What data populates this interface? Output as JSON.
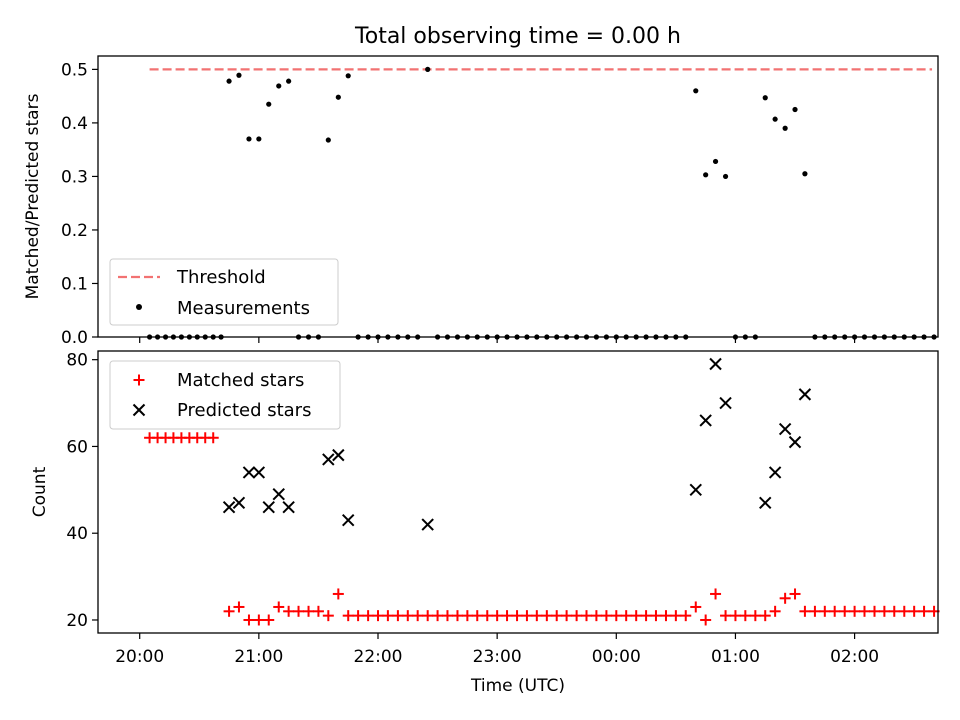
{
  "chart_data": [
    {
      "type": "scatter",
      "title": "Total observing time = 0.00 h",
      "xlabel": "",
      "ylabel": "Matched/Predicted stars",
      "xlim_hours": [
        19.65,
        26.7
      ],
      "ylim": [
        0,
        0.525
      ],
      "yticks": [
        0.0,
        0.1,
        0.2,
        0.3,
        0.4,
        0.5
      ],
      "ytick_labels": [
        "0.0",
        "0.1",
        "0.2",
        "0.3",
        "0.4",
        "0.5"
      ],
      "legend_position": "lower left",
      "threshold": {
        "name": "Threshold",
        "value": 0.5,
        "x_range": [
          20.083,
          26.65
        ],
        "color": "#f27272"
      },
      "series": [
        {
          "name": "Measurements",
          "color": "#000000",
          "marker": "dot",
          "points": [
            [
              20.083,
              0
            ],
            [
              20.15,
              0
            ],
            [
              20.217,
              0
            ],
            [
              20.283,
              0
            ],
            [
              20.35,
              0
            ],
            [
              20.417,
              0
            ],
            [
              20.483,
              0
            ],
            [
              20.55,
              0
            ],
            [
              20.617,
              0
            ],
            [
              20.683,
              0
            ],
            [
              20.75,
              0.478
            ],
            [
              20.833,
              0.489
            ],
            [
              20.917,
              0.37
            ],
            [
              21.0,
              0.37
            ],
            [
              21.083,
              0.435
            ],
            [
              21.167,
              0.469
            ],
            [
              21.25,
              0.478
            ],
            [
              21.333,
              0
            ],
            [
              21.417,
              0
            ],
            [
              21.5,
              0
            ],
            [
              21.583,
              0.368
            ],
            [
              21.667,
              0.448
            ],
            [
              21.75,
              0.488
            ],
            [
              21.833,
              0
            ],
            [
              21.917,
              0
            ],
            [
              22.0,
              0
            ],
            [
              22.083,
              0
            ],
            [
              22.167,
              0
            ],
            [
              22.25,
              0
            ],
            [
              22.333,
              0
            ],
            [
              22.417,
              0.5
            ],
            [
              22.5,
              0
            ],
            [
              22.583,
              0
            ],
            [
              22.667,
              0
            ],
            [
              22.75,
              0
            ],
            [
              22.833,
              0
            ],
            [
              22.917,
              0
            ],
            [
              23.0,
              0
            ],
            [
              23.083,
              0
            ],
            [
              23.167,
              0
            ],
            [
              23.25,
              0
            ],
            [
              23.333,
              0
            ],
            [
              23.417,
              0
            ],
            [
              23.5,
              0
            ],
            [
              23.583,
              0
            ],
            [
              23.667,
              0
            ],
            [
              23.75,
              0
            ],
            [
              23.833,
              0
            ],
            [
              23.917,
              0
            ],
            [
              24.0,
              0
            ],
            [
              24.083,
              0
            ],
            [
              24.167,
              0
            ],
            [
              24.25,
              0
            ],
            [
              24.333,
              0
            ],
            [
              24.417,
              0
            ],
            [
              24.5,
              0
            ],
            [
              24.583,
              0
            ],
            [
              24.667,
              0.46
            ],
            [
              24.75,
              0.303
            ],
            [
              24.833,
              0.328
            ],
            [
              24.917,
              0.3
            ],
            [
              25.0,
              0
            ],
            [
              25.083,
              0
            ],
            [
              25.167,
              0
            ],
            [
              25.25,
              0.447
            ],
            [
              25.333,
              0.407
            ],
            [
              25.417,
              0.39
            ],
            [
              25.5,
              0.425
            ],
            [
              25.583,
              0.305
            ],
            [
              25.667,
              0
            ],
            [
              25.75,
              0
            ],
            [
              25.833,
              0
            ],
            [
              25.917,
              0
            ],
            [
              26.0,
              0
            ],
            [
              26.083,
              0
            ],
            [
              26.167,
              0
            ],
            [
              26.25,
              0
            ],
            [
              26.333,
              0
            ],
            [
              26.417,
              0
            ],
            [
              26.5,
              0
            ],
            [
              26.583,
              0
            ],
            [
              26.667,
              0
            ]
          ]
        }
      ]
    },
    {
      "type": "scatter",
      "title": "",
      "xlabel": "Time (UTC)",
      "ylabel": "Count",
      "xlim_hours": [
        19.65,
        26.7
      ],
      "ylim": [
        17,
        82
      ],
      "yticks": [
        20,
        40,
        60,
        80
      ],
      "ytick_labels": [
        "20",
        "40",
        "60",
        "80"
      ],
      "xticks_hours": [
        20,
        21,
        22,
        23,
        24,
        25,
        26
      ],
      "xtick_labels": [
        "20:00",
        "21:00",
        "22:00",
        "23:00",
        "00:00",
        "01:00",
        "02:00"
      ],
      "legend_position": "upper left",
      "series": [
        {
          "name": "Matched stars",
          "color": "#ff0000",
          "marker": "plus",
          "points": [
            [
              20.083,
              62
            ],
            [
              20.15,
              62
            ],
            [
              20.217,
              62
            ],
            [
              20.283,
              62
            ],
            [
              20.35,
              62
            ],
            [
              20.417,
              62
            ],
            [
              20.483,
              62
            ],
            [
              20.55,
              62
            ],
            [
              20.617,
              62
            ],
            [
              20.75,
              22
            ],
            [
              20.833,
              23
            ],
            [
              20.917,
              20
            ],
            [
              21.0,
              20
            ],
            [
              21.083,
              20
            ],
            [
              21.167,
              23
            ],
            [
              21.25,
              22
            ],
            [
              21.333,
              22
            ],
            [
              21.417,
              22
            ],
            [
              21.5,
              22
            ],
            [
              21.583,
              21
            ],
            [
              21.667,
              26
            ],
            [
              21.75,
              21
            ],
            [
              21.833,
              21
            ],
            [
              21.917,
              21
            ],
            [
              22.0,
              21
            ],
            [
              22.083,
              21
            ],
            [
              22.167,
              21
            ],
            [
              22.25,
              21
            ],
            [
              22.333,
              21
            ],
            [
              22.417,
              21
            ],
            [
              22.5,
              21
            ],
            [
              22.583,
              21
            ],
            [
              22.667,
              21
            ],
            [
              22.75,
              21
            ],
            [
              22.833,
              21
            ],
            [
              22.917,
              21
            ],
            [
              23.0,
              21
            ],
            [
              23.083,
              21
            ],
            [
              23.167,
              21
            ],
            [
              23.25,
              21
            ],
            [
              23.333,
              21
            ],
            [
              23.417,
              21
            ],
            [
              23.5,
              21
            ],
            [
              23.583,
              21
            ],
            [
              23.667,
              21
            ],
            [
              23.75,
              21
            ],
            [
              23.833,
              21
            ],
            [
              23.917,
              21
            ],
            [
              24.0,
              21
            ],
            [
              24.083,
              21
            ],
            [
              24.167,
              21
            ],
            [
              24.25,
              21
            ],
            [
              24.333,
              21
            ],
            [
              24.417,
              21
            ],
            [
              24.5,
              21
            ],
            [
              24.583,
              21
            ],
            [
              24.667,
              23
            ],
            [
              24.75,
              20
            ],
            [
              24.833,
              26
            ],
            [
              24.917,
              21
            ],
            [
              25.0,
              21
            ],
            [
              25.083,
              21
            ],
            [
              25.167,
              21
            ],
            [
              25.25,
              21
            ],
            [
              25.333,
              22
            ],
            [
              25.417,
              25
            ],
            [
              25.5,
              26
            ],
            [
              25.583,
              22
            ],
            [
              25.667,
              22
            ],
            [
              25.75,
              22
            ],
            [
              25.833,
              22
            ],
            [
              25.917,
              22
            ],
            [
              26.0,
              22
            ],
            [
              26.083,
              22
            ],
            [
              26.167,
              22
            ],
            [
              26.25,
              22
            ],
            [
              26.333,
              22
            ],
            [
              26.417,
              22
            ],
            [
              26.5,
              22
            ],
            [
              26.583,
              22
            ],
            [
              26.667,
              22
            ]
          ]
        },
        {
          "name": "Predicted stars",
          "color": "#000000",
          "marker": "x",
          "points": [
            [
              20.75,
              46
            ],
            [
              20.833,
              47
            ],
            [
              20.917,
              54
            ],
            [
              21.0,
              54
            ],
            [
              21.083,
              46
            ],
            [
              21.167,
              49
            ],
            [
              21.25,
              46
            ],
            [
              21.583,
              57
            ],
            [
              21.667,
              58
            ],
            [
              21.75,
              43
            ],
            [
              22.417,
              42
            ],
            [
              24.667,
              50
            ],
            [
              24.75,
              66
            ],
            [
              24.833,
              79
            ],
            [
              24.917,
              70
            ],
            [
              25.25,
              47
            ],
            [
              25.333,
              54
            ],
            [
              25.417,
              64
            ],
            [
              25.5,
              61
            ],
            [
              25.583,
              72
            ]
          ]
        }
      ]
    }
  ]
}
